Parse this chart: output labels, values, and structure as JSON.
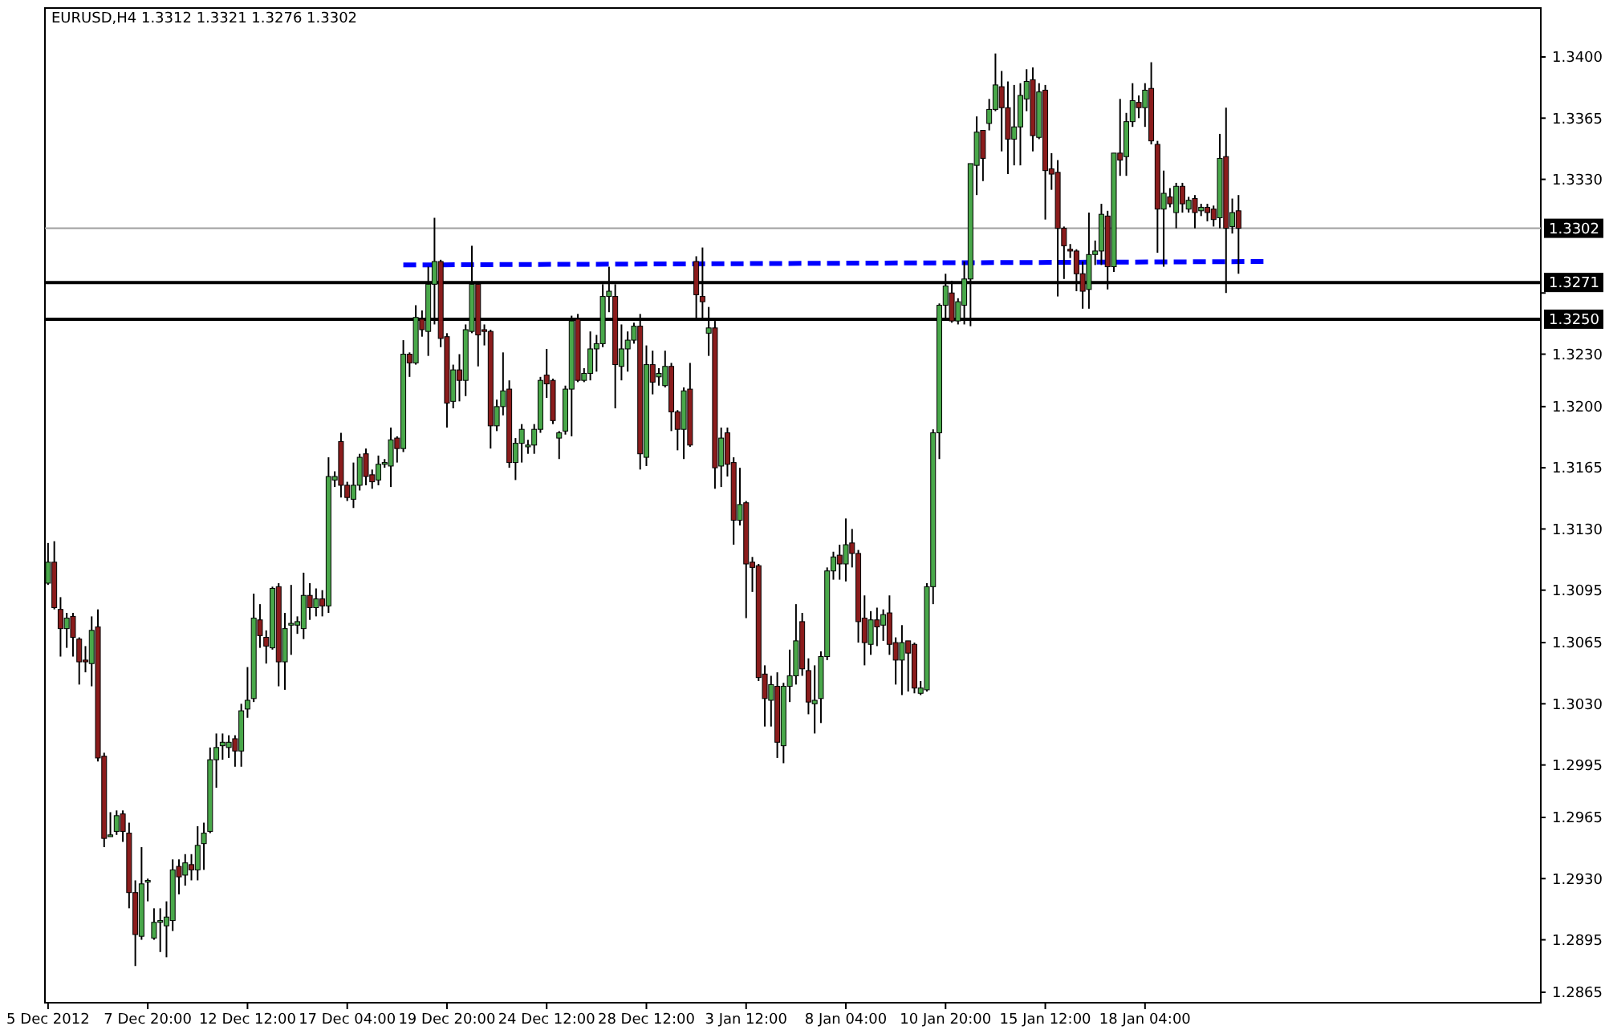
{
  "chart_data": {
    "type": "candlestick",
    "title": "EURUSD,H4  1.3312 1.3321 1.3276 1.3302",
    "categories": [
      "5 Dec 2012",
      null,
      null,
      null,
      null,
      null,
      null,
      null,
      null,
      null,
      null,
      null,
      null,
      null,
      null,
      null,
      "7 Dec 20:00",
      null,
      null,
      null,
      null,
      null,
      null,
      null,
      null,
      null,
      null,
      null,
      null,
      null,
      null,
      null,
      "12 Dec 12:00",
      null,
      null,
      null,
      null,
      null,
      null,
      null,
      null,
      null,
      null,
      null,
      null,
      null,
      null,
      null,
      "17 Dec 04:00",
      null,
      null,
      null,
      null,
      null,
      null,
      null,
      null,
      null,
      null,
      null,
      null,
      null,
      null,
      null,
      "19 Dec 20:00",
      null,
      null,
      null,
      null,
      null,
      null,
      null,
      null,
      null,
      null,
      null,
      null,
      null,
      null,
      null,
      "24 Dec 12:00",
      null,
      null,
      null,
      null,
      null,
      null,
      null,
      null,
      null,
      null,
      null,
      null,
      null,
      null,
      null,
      "28 Dec 12:00",
      null,
      null,
      null,
      null,
      null,
      null,
      null,
      null,
      null,
      null,
      null,
      null,
      null,
      null,
      null,
      "3 Jan 12:00",
      null,
      null,
      null,
      null,
      null,
      null,
      null,
      null,
      null,
      null,
      null,
      null,
      null,
      null,
      null,
      "8 Jan 04:00",
      null,
      null,
      null,
      null,
      null,
      null,
      null,
      null,
      null,
      null,
      null,
      null,
      null,
      null,
      null,
      "10 Jan 20:00",
      null,
      null,
      null,
      null,
      null,
      null,
      null,
      null,
      null,
      null,
      null,
      null,
      null,
      null,
      null,
      "15 Jan 12:00",
      null,
      null,
      null,
      null,
      null,
      null,
      null,
      null,
      null,
      null,
      null,
      null,
      null,
      null,
      null,
      "18 Jan 04:00",
      null,
      null,
      null,
      null,
      null,
      null,
      null,
      null,
      null,
      null,
      null,
      null,
      null,
      null,
      null,
      null,
      null,
      null,
      null,
      null,
      null,
      null,
      null,
      null,
      null,
      null,
      null,
      null,
      null,
      null,
      null,
      null,
      null,
      null,
      null,
      null,
      null,
      null,
      null,
      null,
      null,
      null,
      null,
      null,
      null,
      null,
      null,
      null,
      null,
      null,
      null,
      null,
      null,
      null,
      null,
      null,
      null,
      null,
      null,
      null,
      null,
      null,
      null
    ],
    "ohlc": [
      [
        1.3099,
        1.3122,
        1.3098,
        1.3111
      ],
      [
        1.3111,
        1.3123,
        1.3084,
        1.3085
      ],
      [
        1.3084,
        1.3091,
        1.3057,
        1.3073
      ],
      [
        1.3073,
        1.3082,
        1.3062,
        1.3079
      ],
      [
        1.308,
        1.3082,
        1.3057,
        1.3068
      ],
      [
        1.3067,
        1.3068,
        1.3041,
        1.3054
      ],
      [
        1.3055,
        1.3063,
        1.3048,
        1.3054
      ],
      [
        1.3053,
        1.308,
        1.304,
        1.3072
      ],
      [
        1.3074,
        1.3084,
        1.2997,
        1.2999
      ],
      [
        1.3,
        1.3002,
        1.2948,
        1.2953
      ],
      [
        1.2954,
        1.2968,
        1.2954,
        1.2955
      ],
      [
        1.2957,
        1.2969,
        1.2955,
        1.2966
      ],
      [
        1.2967,
        1.2969,
        1.2951,
        1.2957
      ],
      [
        1.2956,
        1.2962,
        1.2913,
        1.2922
      ],
      [
        1.2922,
        1.2929,
        1.288,
        1.2898
      ],
      [
        1.2897,
        1.2948,
        1.2895,
        1.2927
      ],
      [
        1.2928,
        1.293,
        1.2917,
        1.2929
      ],
      [
        1.2896,
        1.2913,
        1.2895,
        1.2905
      ],
      [
        1.2905,
        1.2913,
        1.2888,
        1.2906
      ],
      [
        1.2903,
        1.2917,
        1.2885,
        1.2908
      ],
      [
        1.2906,
        1.2941,
        1.29,
        1.2935
      ],
      [
        1.2937,
        1.2941,
        1.2921,
        1.2931
      ],
      [
        1.2932,
        1.2944,
        1.2926,
        1.2939
      ],
      [
        1.2938,
        1.2944,
        1.2929,
        1.2935
      ],
      [
        1.2935,
        1.296,
        1.2929,
        1.2949
      ],
      [
        1.295,
        1.2962,
        1.2935,
        1.2956
      ],
      [
        1.2957,
        1.3005,
        1.2956,
        1.2998
      ],
      [
        1.2998,
        1.3013,
        1.2982,
        1.3005
      ],
      [
        1.3006,
        1.3013,
        1.2998,
        1.3008
      ],
      [
        1.3005,
        1.3012,
        1.2999,
        1.3008
      ],
      [
        1.301,
        1.3012,
        1.2994,
        1.3003
      ],
      [
        1.3003,
        1.303,
        1.2994,
        1.3026
      ],
      [
        1.3027,
        1.3051,
        1.3022,
        1.3032
      ],
      [
        1.3033,
        1.3093,
        1.3031,
        1.3079
      ],
      [
        1.3078,
        1.3087,
        1.3062,
        1.3069
      ],
      [
        1.3068,
        1.3072,
        1.3053,
        1.3063
      ],
      [
        1.3062,
        1.3097,
        1.3061,
        1.3096
      ],
      [
        1.3097,
        1.3099,
        1.304,
        1.3054
      ],
      [
        1.3054,
        1.3082,
        1.3038,
        1.3073
      ],
      [
        1.3075,
        1.3098,
        1.3058,
        1.3076
      ],
      [
        1.3075,
        1.308,
        1.307,
        1.3077
      ],
      [
        1.3073,
        1.3105,
        1.3067,
        1.3092
      ],
      [
        1.3092,
        1.3099,
        1.3078,
        1.3085
      ],
      [
        1.3085,
        1.3096,
        1.308,
        1.309
      ],
      [
        1.309,
        1.3095,
        1.308,
        1.3086
      ],
      [
        1.3086,
        1.3171,
        1.3082,
        1.316
      ],
      [
        1.3158,
        1.3163,
        1.3154,
        1.316
      ],
      [
        1.318,
        1.3185,
        1.3148,
        1.3155
      ],
      [
        1.3155,
        1.3157,
        1.3146,
        1.3148
      ],
      [
        1.3147,
        1.3168,
        1.3142,
        1.3155
      ],
      [
        1.3155,
        1.3173,
        1.3152,
        1.3171
      ],
      [
        1.3173,
        1.3176,
        1.3155,
        1.316
      ],
      [
        1.3161,
        1.3164,
        1.3153,
        1.3157
      ],
      [
        1.3158,
        1.3172,
        1.3155,
        1.3167
      ],
      [
        1.3167,
        1.317,
        1.3165,
        1.3168
      ],
      [
        1.3166,
        1.3188,
        1.3154,
        1.3181
      ],
      [
        1.3182,
        1.3183,
        1.3168,
        1.3176
      ],
      [
        1.3176,
        1.3238,
        1.3174,
        1.323
      ],
      [
        1.323,
        1.3231,
        1.3217,
        1.3225
      ],
      [
        1.3225,
        1.3258,
        1.3224,
        1.3251
      ],
      [
        1.325,
        1.3255,
        1.324,
        1.3244
      ],
      [
        1.3243,
        1.328,
        1.3229,
        1.327
      ],
      [
        1.327,
        1.3308,
        1.3247,
        1.3283
      ],
      [
        1.3283,
        1.3284,
        1.3234,
        1.3239
      ],
      [
        1.324,
        1.3242,
        1.3188,
        1.3202
      ],
      [
        1.3203,
        1.3224,
        1.3199,
        1.3221
      ],
      [
        1.3221,
        1.323,
        1.3203,
        1.3215
      ],
      [
        1.3215,
        1.3247,
        1.3206,
        1.3244
      ],
      [
        1.3243,
        1.3292,
        1.3242,
        1.327
      ],
      [
        1.327,
        1.3271,
        1.3223,
        1.3241
      ],
      [
        1.3244,
        1.3247,
        1.3235,
        1.3243
      ],
      [
        1.3243,
        1.3244,
        1.3176,
        1.3189
      ],
      [
        1.3189,
        1.3204,
        1.3186,
        1.32
      ],
      [
        1.32,
        1.3231,
        1.3195,
        1.3209
      ],
      [
        1.321,
        1.3215,
        1.3165,
        1.3168
      ],
      [
        1.3168,
        1.3182,
        1.3158,
        1.3179
      ],
      [
        1.3179,
        1.319,
        1.3168,
        1.3187
      ],
      [
        1.3177,
        1.3181,
        1.3173,
        1.3178
      ],
      [
        1.3178,
        1.319,
        1.3173,
        1.3187
      ],
      [
        1.3187,
        1.3217,
        1.3185,
        1.3215
      ],
      [
        1.3218,
        1.3233,
        1.3205,
        1.3213
      ],
      [
        1.3215,
        1.3216,
        1.319,
        1.3192
      ],
      [
        1.3182,
        1.3186,
        1.317,
        1.3185
      ],
      [
        1.3186,
        1.3212,
        1.3184,
        1.321
      ],
      [
        1.321,
        1.3252,
        1.3183,
        1.3249
      ],
      [
        1.325,
        1.3253,
        1.3214,
        1.3215
      ],
      [
        1.3215,
        1.3222,
        1.3214,
        1.3219
      ],
      [
        1.3219,
        1.3243,
        1.3215,
        1.3233
      ],
      [
        1.3233,
        1.3241,
        1.322,
        1.3236
      ],
      [
        1.3236,
        1.327,
        1.3234,
        1.3263
      ],
      [
        1.3263,
        1.328,
        1.3254,
        1.3266
      ],
      [
        1.3263,
        1.327,
        1.3199,
        1.3224
      ],
      [
        1.3223,
        1.3247,
        1.3215,
        1.3233
      ],
      [
        1.3233,
        1.3243,
        1.322,
        1.3238
      ],
      [
        1.3238,
        1.3248,
        1.3236,
        1.3246
      ],
      [
        1.3246,
        1.3253,
        1.3164,
        1.3173
      ],
      [
        1.3171,
        1.3235,
        1.3166,
        1.3224
      ],
      [
        1.3224,
        1.3232,
        1.3207,
        1.3214
      ],
      [
        1.3217,
        1.3222,
        1.3212,
        1.3219
      ],
      [
        1.3212,
        1.3232,
        1.3211,
        1.3223
      ],
      [
        1.3223,
        1.3225,
        1.3186,
        1.3197
      ],
      [
        1.3197,
        1.3198,
        1.3175,
        1.3187
      ],
      [
        1.3187,
        1.3211,
        1.317,
        1.3209
      ],
      [
        1.321,
        1.3225,
        1.3177,
        1.3178
      ],
      [
        1.3283,
        1.3286,
        1.3249,
        1.3264
      ],
      [
        1.3263,
        1.3291,
        1.3249,
        1.326
      ],
      [
        1.3242,
        1.3257,
        1.3229,
        1.3245
      ],
      [
        1.3245,
        1.3249,
        1.3153,
        1.3165
      ],
      [
        1.3166,
        1.3188,
        1.3154,
        1.3182
      ],
      [
        1.3185,
        1.3188,
        1.316,
        1.3167
      ],
      [
        1.3168,
        1.3171,
        1.3121,
        1.3135
      ],
      [
        1.3135,
        1.3165,
        1.3132,
        1.3144
      ],
      [
        1.3145,
        1.3146,
        1.3079,
        1.311
      ],
      [
        1.3111,
        1.3114,
        1.3094,
        1.3108
      ],
      [
        1.3109,
        1.311,
        1.3043,
        1.3045
      ],
      [
        1.3047,
        1.3052,
        1.3017,
        1.3033
      ],
      [
        1.3032,
        1.3046,
        1.3017,
        1.3041
      ],
      [
        1.304,
        1.3048,
        1.2999,
        1.3008
      ],
      [
        1.3006,
        1.3042,
        1.2996,
        1.304
      ],
      [
        1.304,
        1.3061,
        1.3031,
        1.3046
      ],
      [
        1.3046,
        1.3087,
        1.3041,
        1.3066
      ],
      [
        1.3077,
        1.3082,
        1.3046,
        1.305
      ],
      [
        1.3049,
        1.3056,
        1.3024,
        1.3031
      ],
      [
        1.303,
        1.3052,
        1.3013,
        1.3032
      ],
      [
        1.3033,
        1.306,
        1.3019,
        1.3057
      ],
      [
        1.3057,
        1.3108,
        1.3055,
        1.3106
      ],
      [
        1.3106,
        1.3117,
        1.3101,
        1.3114
      ],
      [
        1.3115,
        1.3121,
        1.3101,
        1.311
      ],
      [
        1.311,
        1.3136,
        1.31,
        1.3121
      ],
      [
        1.3122,
        1.313,
        1.3108,
        1.3116
      ],
      [
        1.3116,
        1.3118,
        1.3065,
        1.3077
      ],
      [
        1.3079,
        1.3092,
        1.3052,
        1.3065
      ],
      [
        1.3064,
        1.3083,
        1.3058,
        1.3078
      ],
      [
        1.3078,
        1.3085,
        1.3063,
        1.3074
      ],
      [
        1.3075,
        1.3084,
        1.3066,
        1.3081
      ],
      [
        1.3082,
        1.3092,
        1.3058,
        1.3064
      ],
      [
        1.3065,
        1.3068,
        1.3041,
        1.3055
      ],
      [
        1.3055,
        1.3075,
        1.3035,
        1.3065
      ],
      [
        1.3066,
        1.3066,
        1.3037,
        1.3059
      ],
      [
        1.3064,
        1.3065,
        1.3036,
        1.3039
      ],
      [
        1.3036,
        1.3043,
        1.3035,
        1.3039
      ],
      [
        1.3038,
        1.3099,
        1.3037,
        1.3097
      ],
      [
        1.3097,
        1.3187,
        1.3087,
        1.3185
      ],
      [
        1.3185,
        1.3259,
        1.317,
        1.3258
      ],
      [
        1.3258,
        1.3276,
        1.325,
        1.3269
      ],
      [
        1.3265,
        1.3272,
        1.3248,
        1.3249
      ],
      [
        1.3249,
        1.3262,
        1.3247,
        1.326
      ],
      [
        1.3258,
        1.3283,
        1.3247,
        1.3273
      ],
      [
        1.3273,
        1.3339,
        1.3246,
        1.3339
      ],
      [
        1.3338,
        1.3366,
        1.3321,
        1.3357
      ],
      [
        1.3358,
        1.3358,
        1.3329,
        1.3342
      ],
      [
        1.3362,
        1.3376,
        1.3358,
        1.337
      ],
      [
        1.337,
        1.3402,
        1.3369,
        1.3384
      ],
      [
        1.3383,
        1.3392,
        1.3346,
        1.3371
      ],
      [
        1.3371,
        1.3386,
        1.3333,
        1.3353
      ],
      [
        1.3353,
        1.3384,
        1.3338,
        1.336
      ],
      [
        1.336,
        1.3385,
        1.3338,
        1.3378
      ],
      [
        1.3376,
        1.3393,
        1.3369,
        1.3386
      ],
      [
        1.3387,
        1.3394,
        1.3346,
        1.3355
      ],
      [
        1.3354,
        1.3385,
        1.3353,
        1.338
      ],
      [
        1.3381,
        1.3384,
        1.3307,
        1.3335
      ],
      [
        1.3336,
        1.3345,
        1.3324,
        1.3333
      ],
      [
        1.3334,
        1.3341,
        1.3263,
        1.3302
      ],
      [
        1.3302,
        1.3303,
        1.3273,
        1.3292
      ],
      [
        1.329,
        1.3293,
        1.3285,
        1.3289
      ],
      [
        1.3289,
        1.329,
        1.3266,
        1.3276
      ],
      [
        1.3276,
        1.3283,
        1.3256,
        1.3266
      ],
      [
        1.3267,
        1.3311,
        1.3256,
        1.3287
      ],
      [
        1.3287,
        1.3295,
        1.3281,
        1.3289
      ],
      [
        1.3289,
        1.3316,
        1.3281,
        1.331
      ],
      [
        1.3309,
        1.3312,
        1.3267,
        1.328
      ],
      [
        1.328,
        1.3345,
        1.3277,
        1.3345
      ],
      [
        1.3345,
        1.3376,
        1.3332,
        1.3341
      ],
      [
        1.3343,
        1.3368,
        1.3332,
        1.3363
      ],
      [
        1.3363,
        1.3385,
        1.336,
        1.3375
      ],
      [
        1.3374,
        1.3378,
        1.3365,
        1.3371
      ],
      [
        1.3371,
        1.3385,
        1.336,
        1.3381
      ],
      [
        1.3382,
        1.3397,
        1.335,
        1.3352
      ],
      [
        1.335,
        1.3352,
        1.3288,
        1.3313
      ],
      [
        1.3313,
        1.3335,
        1.328,
        1.3322
      ],
      [
        1.332,
        1.3325,
        1.3314,
        1.3316
      ],
      [
        1.3311,
        1.3328,
        1.3302,
        1.3326
      ],
      [
        1.3326,
        1.3328,
        1.3311,
        1.3316
      ],
      [
        1.3313,
        1.332,
        1.3311,
        1.3318
      ],
      [
        1.3319,
        1.3321,
        1.3302,
        1.3311
      ],
      [
        1.3312,
        1.3316,
        1.3309,
        1.3314
      ],
      [
        1.3314,
        1.3316,
        1.3306,
        1.3311
      ],
      [
        1.3313,
        1.3315,
        1.3303,
        1.3307
      ],
      [
        1.3308,
        1.3356,
        1.3302,
        1.3342
      ],
      [
        1.3343,
        1.3371,
        1.3265,
        1.3302
      ],
      [
        1.3303,
        1.3319,
        1.3299,
        1.3311
      ],
      [
        1.3312,
        1.3321,
        1.3276,
        1.3302
      ],
      null,
      null,
      null,
      null,
      null,
      null,
      null,
      null,
      null,
      null,
      null,
      null,
      null,
      null,
      null,
      null,
      null,
      null,
      null,
      null,
      null,
      null,
      null,
      null,
      null,
      null,
      null,
      null,
      null,
      null,
      null,
      null,
      null,
      null,
      null,
      null,
      null,
      null,
      null,
      null,
      null,
      null,
      null,
      null,
      null,
      null,
      null,
      null
    ],
    "series": [
      {
        "type": "line",
        "color": "#0000ff",
        "line_style": "dashed",
        "values": [
          null,
          null,
          null,
          null,
          null,
          null,
          null,
          null,
          null,
          null,
          null,
          null,
          null,
          null,
          null,
          null,
          null,
          null,
          null,
          null,
          null,
          null,
          null,
          null,
          null,
          null,
          null,
          null,
          null,
          null,
          null,
          null,
          null,
          null,
          null,
          null,
          null,
          null,
          null,
          null,
          null,
          null,
          null,
          null,
          null,
          null,
          null,
          null,
          null,
          null,
          null,
          null,
          null,
          null,
          null,
          null,
          null,
          1.3281,
          null,
          null,
          null,
          null,
          null,
          null,
          null,
          null,
          null,
          null,
          null,
          null,
          null,
          null,
          null,
          null,
          null,
          null,
          null,
          null,
          null,
          null,
          null,
          null,
          null,
          null,
          null,
          null,
          null,
          null,
          null,
          null,
          null,
          null,
          null,
          null,
          null,
          null,
          null,
          null,
          null,
          null,
          null,
          null,
          null,
          null,
          null,
          null,
          null,
          null,
          null,
          null,
          null,
          null,
          null,
          null,
          null,
          null,
          null,
          null,
          null,
          null,
          null,
          null,
          null,
          null,
          null,
          null,
          null,
          null,
          null,
          null,
          null,
          null,
          null,
          null,
          null,
          null,
          null,
          null,
          null,
          null,
          null,
          null,
          null,
          null,
          null,
          null,
          null,
          null,
          null,
          null,
          null,
          null,
          null,
          null,
          null,
          null,
          null,
          null,
          null,
          null,
          null,
          null,
          null,
          null,
          null,
          null,
          null,
          null,
          null,
          null,
          null,
          null,
          null,
          null,
          null,
          null,
          null,
          null,
          null,
          null,
          null,
          null,
          null,
          null,
          null,
          null,
          null,
          null,
          null,
          null,
          null,
          null,
          null,
          null,
          null,
          1.3283,
          null,
          null,
          null,
          null,
          null,
          null,
          null,
          null,
          null,
          null,
          null,
          null,
          null,
          null,
          null,
          null,
          null,
          null,
          null,
          null,
          null,
          null,
          null,
          null,
          null,
          null,
          null,
          null,
          null,
          null,
          null,
          null,
          null,
          null,
          null,
          null,
          null,
          null,
          null,
          null,
          null,
          null,
          null,
          null
        ]
      }
    ],
    "ylim": [
      1.2859,
      1.3428
    ],
    "yticks": [
      {
        "value": 1.34,
        "label": "1.3400"
      },
      {
        "value": 1.3365,
        "label": "1.3365"
      },
      {
        "value": 1.333,
        "label": "1.3330"
      },
      {
        "value": 1.3265,
        "label": null
      },
      {
        "value": 1.323,
        "label": "1.3230"
      },
      {
        "value": 1.32,
        "label": "1.3200"
      },
      {
        "value": 1.3165,
        "label": "1.3165"
      },
      {
        "value": 1.313,
        "label": "1.3130"
      },
      {
        "value": 1.3095,
        "label": "1.3095"
      },
      {
        "value": 1.3065,
        "label": "1.3065"
      },
      {
        "value": 1.303,
        "label": "1.3030"
      },
      {
        "value": 1.2995,
        "label": "1.2995"
      },
      {
        "value": 1.2965,
        "label": "1.2965"
      },
      {
        "value": 1.293,
        "label": "1.2930"
      },
      {
        "value": 1.2895,
        "label": "1.2895"
      },
      {
        "value": 1.2865,
        "label": "1.2865"
      }
    ],
    "ref_lines": [
      {
        "axis": "y",
        "value": 1.3302,
        "label": "1.3302",
        "color": "#a0a0a0"
      },
      {
        "axis": "y",
        "value": 1.3271,
        "label": "1.3271",
        "color": "#000000"
      },
      {
        "axis": "y",
        "value": 1.325,
        "label": "1.3250",
        "color": "#000000"
      }
    ]
  }
}
